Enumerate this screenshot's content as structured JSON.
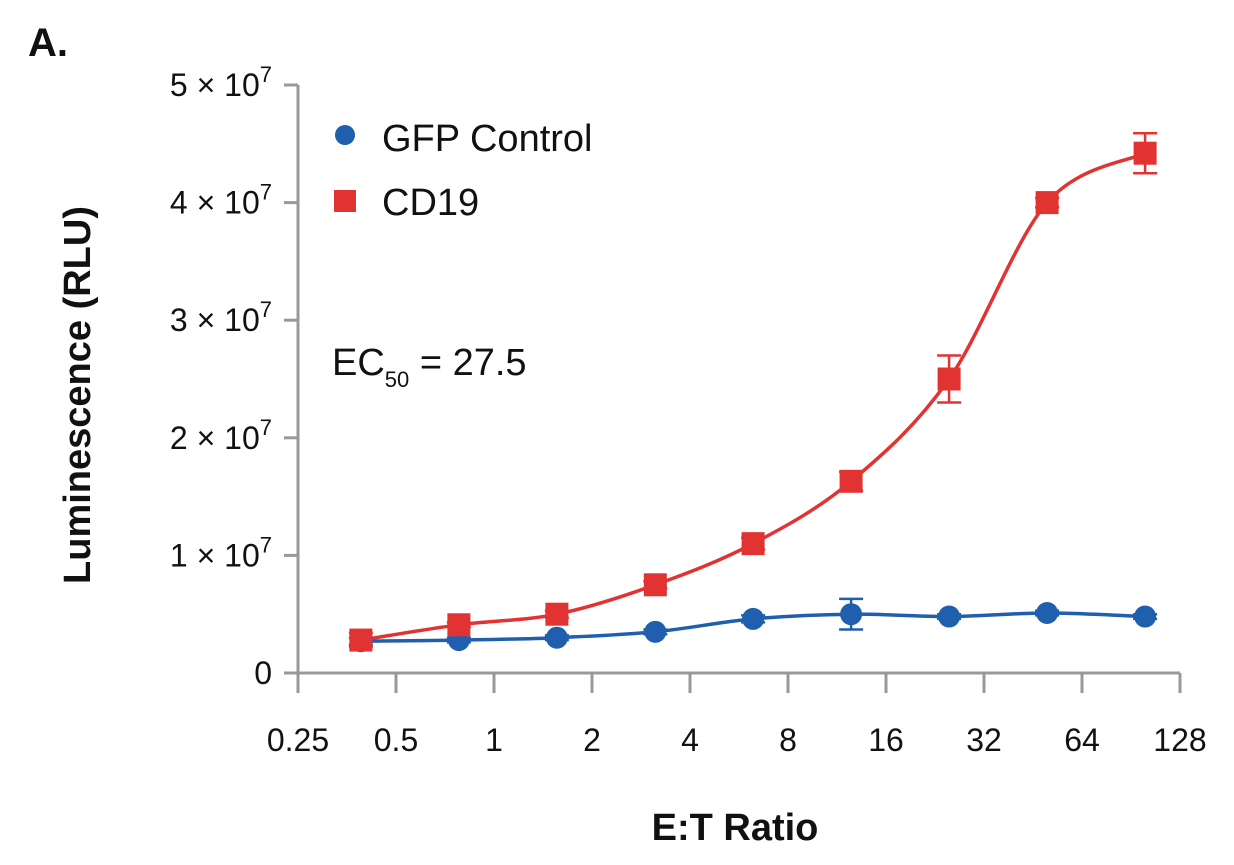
{
  "panel_label": "A.",
  "chart_data": {
    "type": "line",
    "xlabel": "E:T Ratio",
    "ylabel": "Luminescence (RLU)",
    "x_scale": "log2",
    "xlim": [
      0.25,
      128
    ],
    "ylim": [
      0,
      50000000
    ],
    "x_ticks": [
      "0.25",
      "0.5",
      "1",
      "2",
      "4",
      "8",
      "16",
      "32",
      "64",
      "128"
    ],
    "y_ticks": [
      {
        "base": "0",
        "exp": ""
      },
      {
        "base": "1 × 10",
        "exp": "7"
      },
      {
        "base": "2 × 10",
        "exp": "7"
      },
      {
        "base": "3 × 10",
        "exp": "7"
      },
      {
        "base": "4 × 10",
        "exp": "7"
      },
      {
        "base": "5 × 10",
        "exp": "7"
      }
    ],
    "grid": false,
    "legend_position": "top-left",
    "series": [
      {
        "name": "GFP Control",
        "marker": "circle",
        "color": "#1f5fae",
        "x": [
          0.39,
          0.78,
          1.56,
          3.13,
          6.25,
          12.5,
          25,
          50,
          100
        ],
        "y": [
          2700000,
          2800000,
          3000000,
          3500000,
          4600000,
          5000000,
          4800000,
          5100000,
          4800000
        ],
        "err": [
          300000,
          200000,
          200000,
          200000,
          300000,
          1300000,
          200000,
          200000,
          200000
        ]
      },
      {
        "name": "CD19",
        "marker": "square",
        "color": "#e23333",
        "x": [
          0.39,
          0.78,
          1.56,
          3.13,
          6.25,
          12.5,
          25,
          50,
          100
        ],
        "y": [
          2800000,
          4100000,
          5000000,
          7500000,
          11000000,
          16300000,
          25000000,
          40000000,
          44200000
        ],
        "err": [
          600000,
          200000,
          300000,
          300000,
          500000,
          800000,
          2000000,
          400000,
          1700000
        ]
      }
    ],
    "annotation": {
      "main": "EC",
      "sub": "50",
      "value": " = 27.5"
    }
  }
}
